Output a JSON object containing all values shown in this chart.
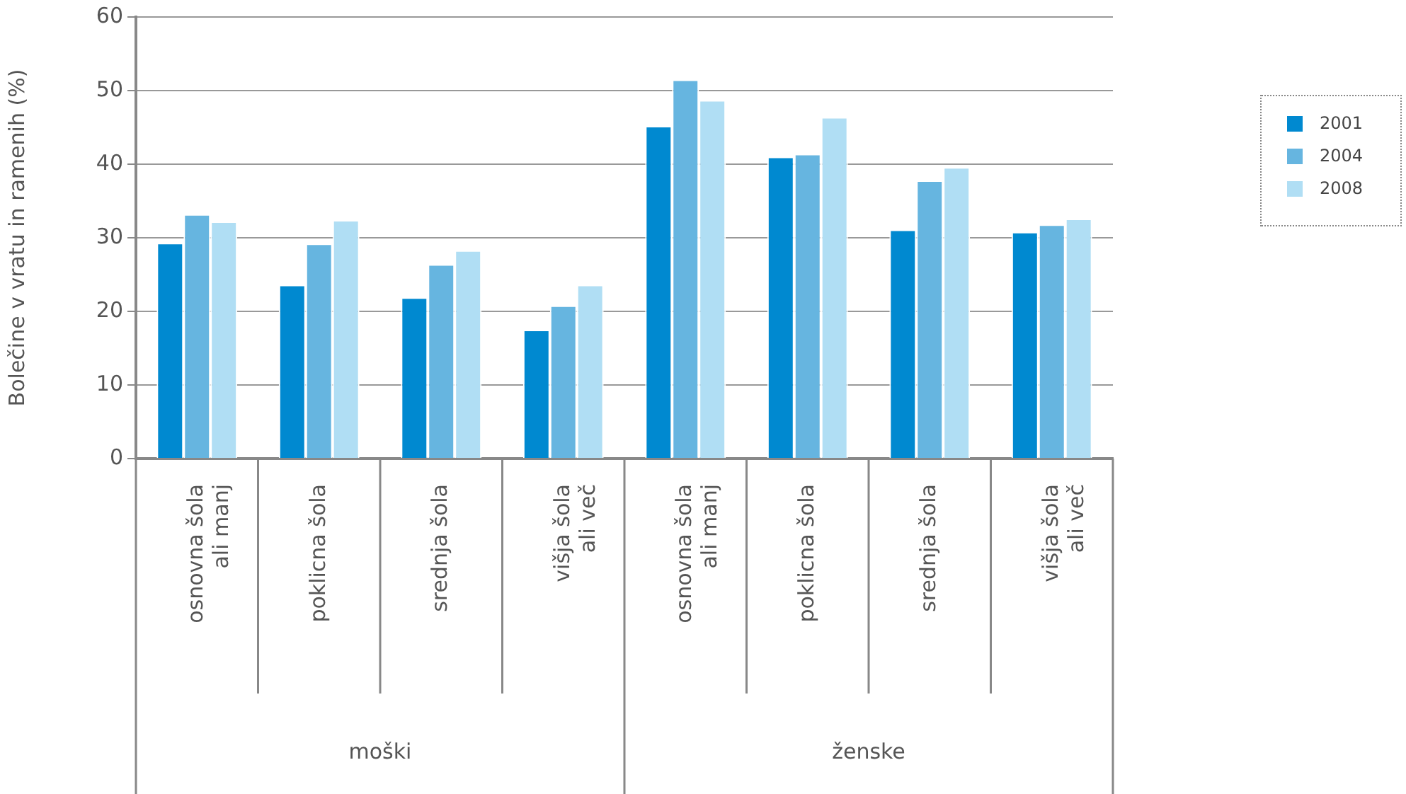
{
  "chart_data": {
    "type": "bar",
    "ylabel": "Bolečine v vratu in ramenih (%)",
    "categories": [
      "osnovna šola ali manj",
      "poklicna šola",
      "srednja šola",
      "višja šola ali več",
      "osnovna šola ali manj",
      "poklicna šola",
      "srednja šola",
      "višja šola ali več"
    ],
    "series": [
      {
        "name": "2001",
        "color": "#0089d0",
        "values": [
          29.3,
          23.6,
          21.9,
          17.5,
          45.2,
          41.0,
          31.1,
          30.8
        ]
      },
      {
        "name": "2004",
        "color": "#66b5e0",
        "values": [
          33.2,
          29.2,
          26.4,
          20.8,
          51.5,
          41.4,
          37.8,
          31.8
        ]
      },
      {
        "name": "2008",
        "color": "#b0def4",
        "values": [
          32.2,
          32.4,
          28.3,
          23.6,
          48.7,
          46.4,
          39.6,
          32.6
        ]
      }
    ],
    "annotations": [
      "moški",
      "ženske"
    ],
    "ylim": [
      0,
      60
    ],
    "yticks": [
      0,
      10,
      20,
      30,
      40,
      50,
      60
    ],
    "grid": "y",
    "legend": "top right"
  }
}
